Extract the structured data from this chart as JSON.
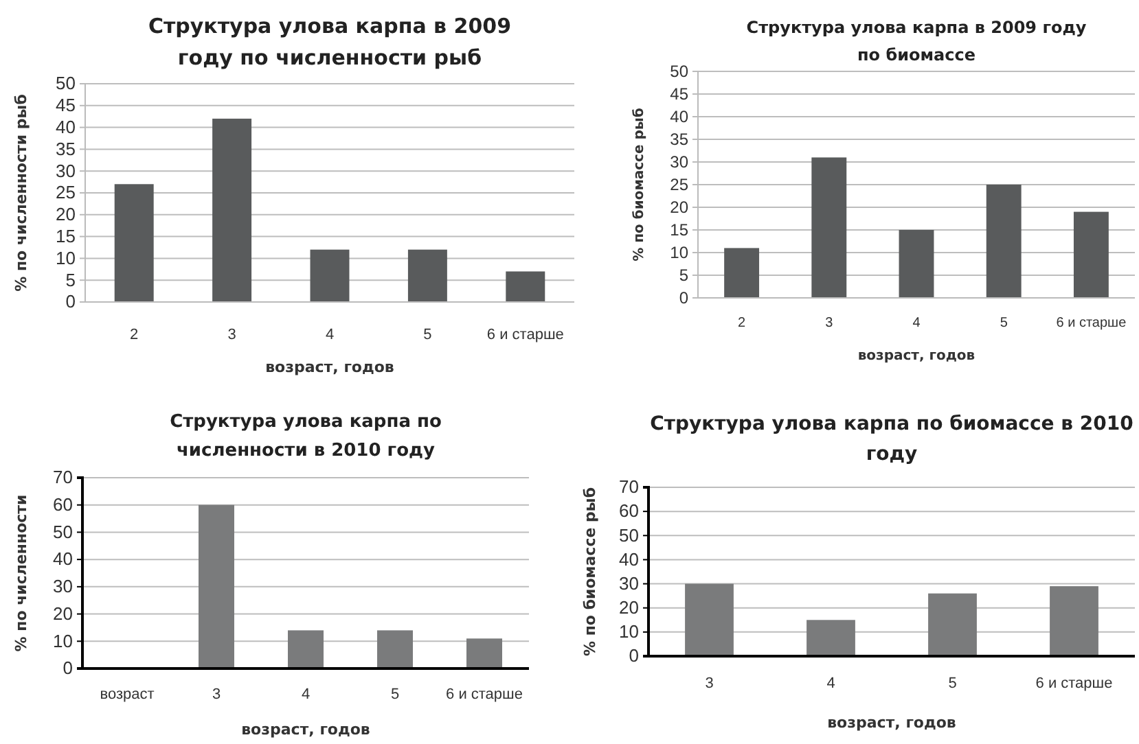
{
  "chart_data": [
    {
      "type": "bar",
      "title": "Структура улова карпа в 2009 году по численности рыб",
      "xlabel": "возраст, годов",
      "ylabel": "% по численности рыб",
      "categories": [
        "2",
        "3",
        "4",
        "5",
        "6 и старше"
      ],
      "values": [
        27,
        42,
        12,
        12,
        7
      ],
      "color": "#595b5c",
      "ylim": [
        0,
        50
      ],
      "yticks": [
        0,
        5,
        10,
        15,
        20,
        25,
        30,
        35,
        40,
        45,
        50
      ],
      "grid": "y",
      "legend": false
    },
    {
      "type": "bar",
      "title": "Структура улова карпа в 2009 году по биомассе",
      "xlabel": "возраст, годов",
      "ylabel": "% по биомассе рыб",
      "categories": [
        "2",
        "3",
        "4",
        "5",
        "6 и старше"
      ],
      "values": [
        11,
        31,
        15,
        25,
        19
      ],
      "color": "#595b5c",
      "ylim": [
        0,
        50
      ],
      "yticks": [
        0,
        5,
        10,
        15,
        20,
        25,
        30,
        35,
        40,
        45,
        50
      ],
      "grid": "y",
      "legend": false
    },
    {
      "type": "bar",
      "title": "Структура улова карпа по численности в 2010 году",
      "xlabel": "возраст, годов",
      "ylabel": "% по численности",
      "categories": [
        "возраст",
        "3",
        "4",
        "5",
        "6 и старше"
      ],
      "values": [
        null,
        60,
        14,
        14,
        11
      ],
      "color": "#7a7b7c",
      "ylim": [
        0,
        70
      ],
      "yticks": [
        0,
        10,
        20,
        30,
        40,
        50,
        60,
        70
      ],
      "grid": "y",
      "legend": false
    },
    {
      "type": "bar",
      "title": "Структура улова карпа по биомассе в 2010 году",
      "xlabel": "возраст, годов",
      "ylabel": "% по биомассе рыб",
      "categories": [
        "3",
        "4",
        "5",
        "6 и старше"
      ],
      "values": [
        30,
        15,
        26,
        29
      ],
      "color": "#7a7b7c",
      "ylim": [
        0,
        70
      ],
      "yticks": [
        0,
        10,
        20,
        30,
        40,
        50,
        60,
        70
      ],
      "grid": "y",
      "legend": false
    }
  ]
}
